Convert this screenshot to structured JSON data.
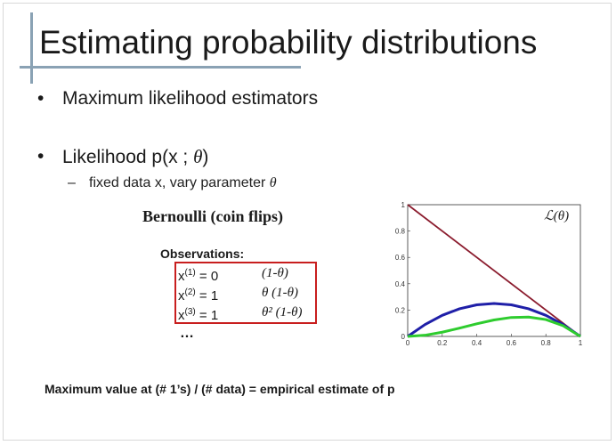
{
  "slide": {
    "title": "Estimating probability distributions",
    "bullet1": "Maximum likelihood estimators",
    "bullet2_prefix": "Likelihood p(x ; ",
    "bullet2_theta": "θ",
    "bullet2_suffix": ")",
    "sub_prefix": "fixed data x, vary parameter ",
    "sub_theta": "θ",
    "bullet_symbol": "•",
    "dash_symbol": "–",
    "bernoulli": "Bernoulli   (coin flips)",
    "observations_label": "Observations:",
    "observations": [
      {
        "lhs_base": "x",
        "lhs_sup": "(1)",
        "lhs_rest": " = 0",
        "rhs": "(1-θ)"
      },
      {
        "lhs_base": "x",
        "lhs_sup": "(2)",
        "lhs_rest": " = 1",
        "rhs": "θ (1-θ)"
      },
      {
        "lhs_base": "x",
        "lhs_sup": "(3)",
        "lhs_rest": " = 1",
        "rhs": "θ² (1-θ)"
      }
    ],
    "ellipsis": "…",
    "bottom_text": "Maximum value at   (# 1’s) / (# data)  = empirical estimate of p"
  },
  "chart_data": {
    "type": "line",
    "title": "ℒ(θ)",
    "xlim": [
      0,
      1
    ],
    "ylim": [
      0,
      1
    ],
    "xticks": [
      "0",
      "0.2",
      "0.4",
      "0.6",
      "0.8",
      "1"
    ],
    "yticks": [
      "0",
      "0.2",
      "0.4",
      "0.6",
      "0.8",
      "1"
    ],
    "series": [
      {
        "color": "#8b1c2e",
        "x": [
          0,
          1
        ],
        "y": [
          1,
          0
        ]
      },
      {
        "color": "#1f1fa8",
        "x": [
          0,
          0.1,
          0.2,
          0.3,
          0.4,
          0.5,
          0.6,
          0.7,
          0.8,
          0.9,
          1
        ],
        "y": [
          0,
          0.09,
          0.16,
          0.21,
          0.24,
          0.25,
          0.24,
          0.21,
          0.16,
          0.09,
          0
        ]
      },
      {
        "color": "#2ecc2e",
        "x": [
          0,
          0.1,
          0.2,
          0.3,
          0.4,
          0.5,
          0.6,
          0.7,
          0.8,
          0.9,
          1
        ],
        "y": [
          0,
          0.009,
          0.032,
          0.063,
          0.096,
          0.125,
          0.144,
          0.147,
          0.128,
          0.081,
          0
        ]
      }
    ]
  }
}
